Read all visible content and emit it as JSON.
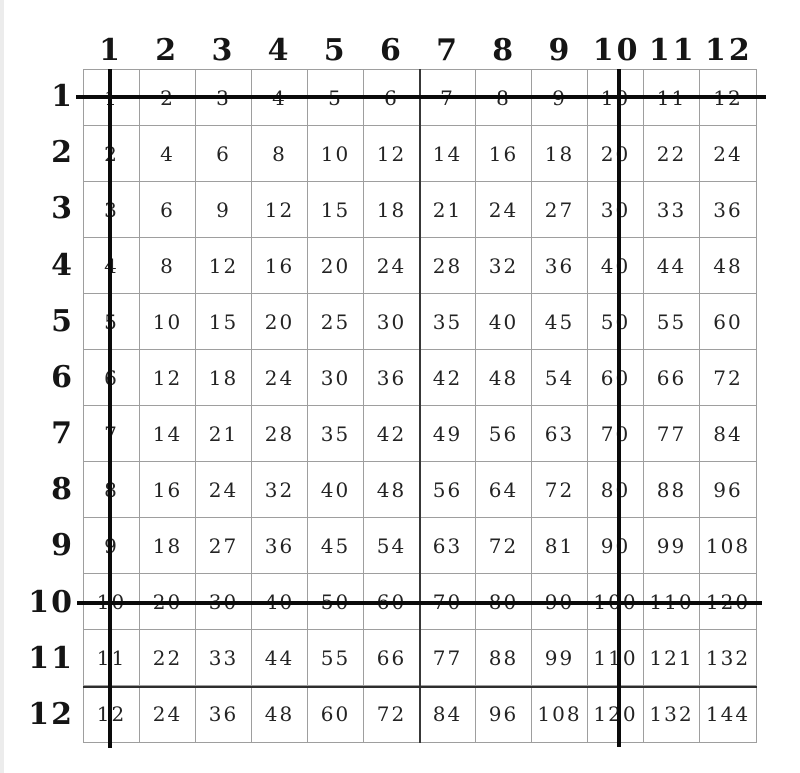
{
  "page": {
    "background_color": "#ffffff",
    "edge_strip_color": "#ececec"
  },
  "colors": {
    "grid_line": "#9e9e9e",
    "dark_line": "#383838",
    "strike": "#0a0a0a",
    "header_text": "#151515",
    "cell_text": "#232323"
  },
  "chart_data": {
    "type": "table",
    "column_headers": [
      "1",
      "2",
      "3",
      "4",
      "5",
      "6",
      "7",
      "8",
      "9",
      "10",
      "11",
      "12"
    ],
    "row_headers": [
      "1",
      "2",
      "3",
      "4",
      "5",
      "6",
      "7",
      "8",
      "9",
      "10",
      "11",
      "12"
    ],
    "values": [
      [
        1,
        2,
        3,
        4,
        5,
        6,
        7,
        8,
        9,
        10,
        11,
        12
      ],
      [
        2,
        4,
        6,
        8,
        10,
        12,
        14,
        16,
        18,
        20,
        22,
        24
      ],
      [
        3,
        6,
        9,
        12,
        15,
        18,
        21,
        24,
        27,
        30,
        33,
        36
      ],
      [
        4,
        8,
        12,
        16,
        20,
        24,
        28,
        32,
        36,
        40,
        44,
        48
      ],
      [
        5,
        10,
        15,
        20,
        25,
        30,
        35,
        40,
        45,
        50,
        55,
        60
      ],
      [
        6,
        12,
        18,
        24,
        30,
        36,
        42,
        48,
        54,
        60,
        66,
        72
      ],
      [
        7,
        14,
        21,
        28,
        35,
        42,
        49,
        56,
        63,
        70,
        77,
        84
      ],
      [
        8,
        16,
        24,
        32,
        40,
        48,
        56,
        64,
        72,
        80,
        88,
        96
      ],
      [
        9,
        18,
        27,
        36,
        45,
        54,
        63,
        72,
        81,
        90,
        99,
        108
      ],
      [
        10,
        20,
        30,
        40,
        50,
        60,
        70,
        80,
        90,
        100,
        110,
        120
      ],
      [
        11,
        22,
        33,
        44,
        55,
        66,
        77,
        88,
        99,
        110,
        121,
        132
      ],
      [
        12,
        24,
        36,
        48,
        60,
        72,
        84,
        96,
        108,
        120,
        132,
        144
      ]
    ],
    "strikethrough": {
      "rows": [
        "1",
        "10"
      ],
      "columns": [
        "1",
        "10"
      ]
    },
    "dark_dividers": {
      "vertical_after_column": "6",
      "horizontal_after_row": "11"
    },
    "grid": "on",
    "legend": "none"
  }
}
